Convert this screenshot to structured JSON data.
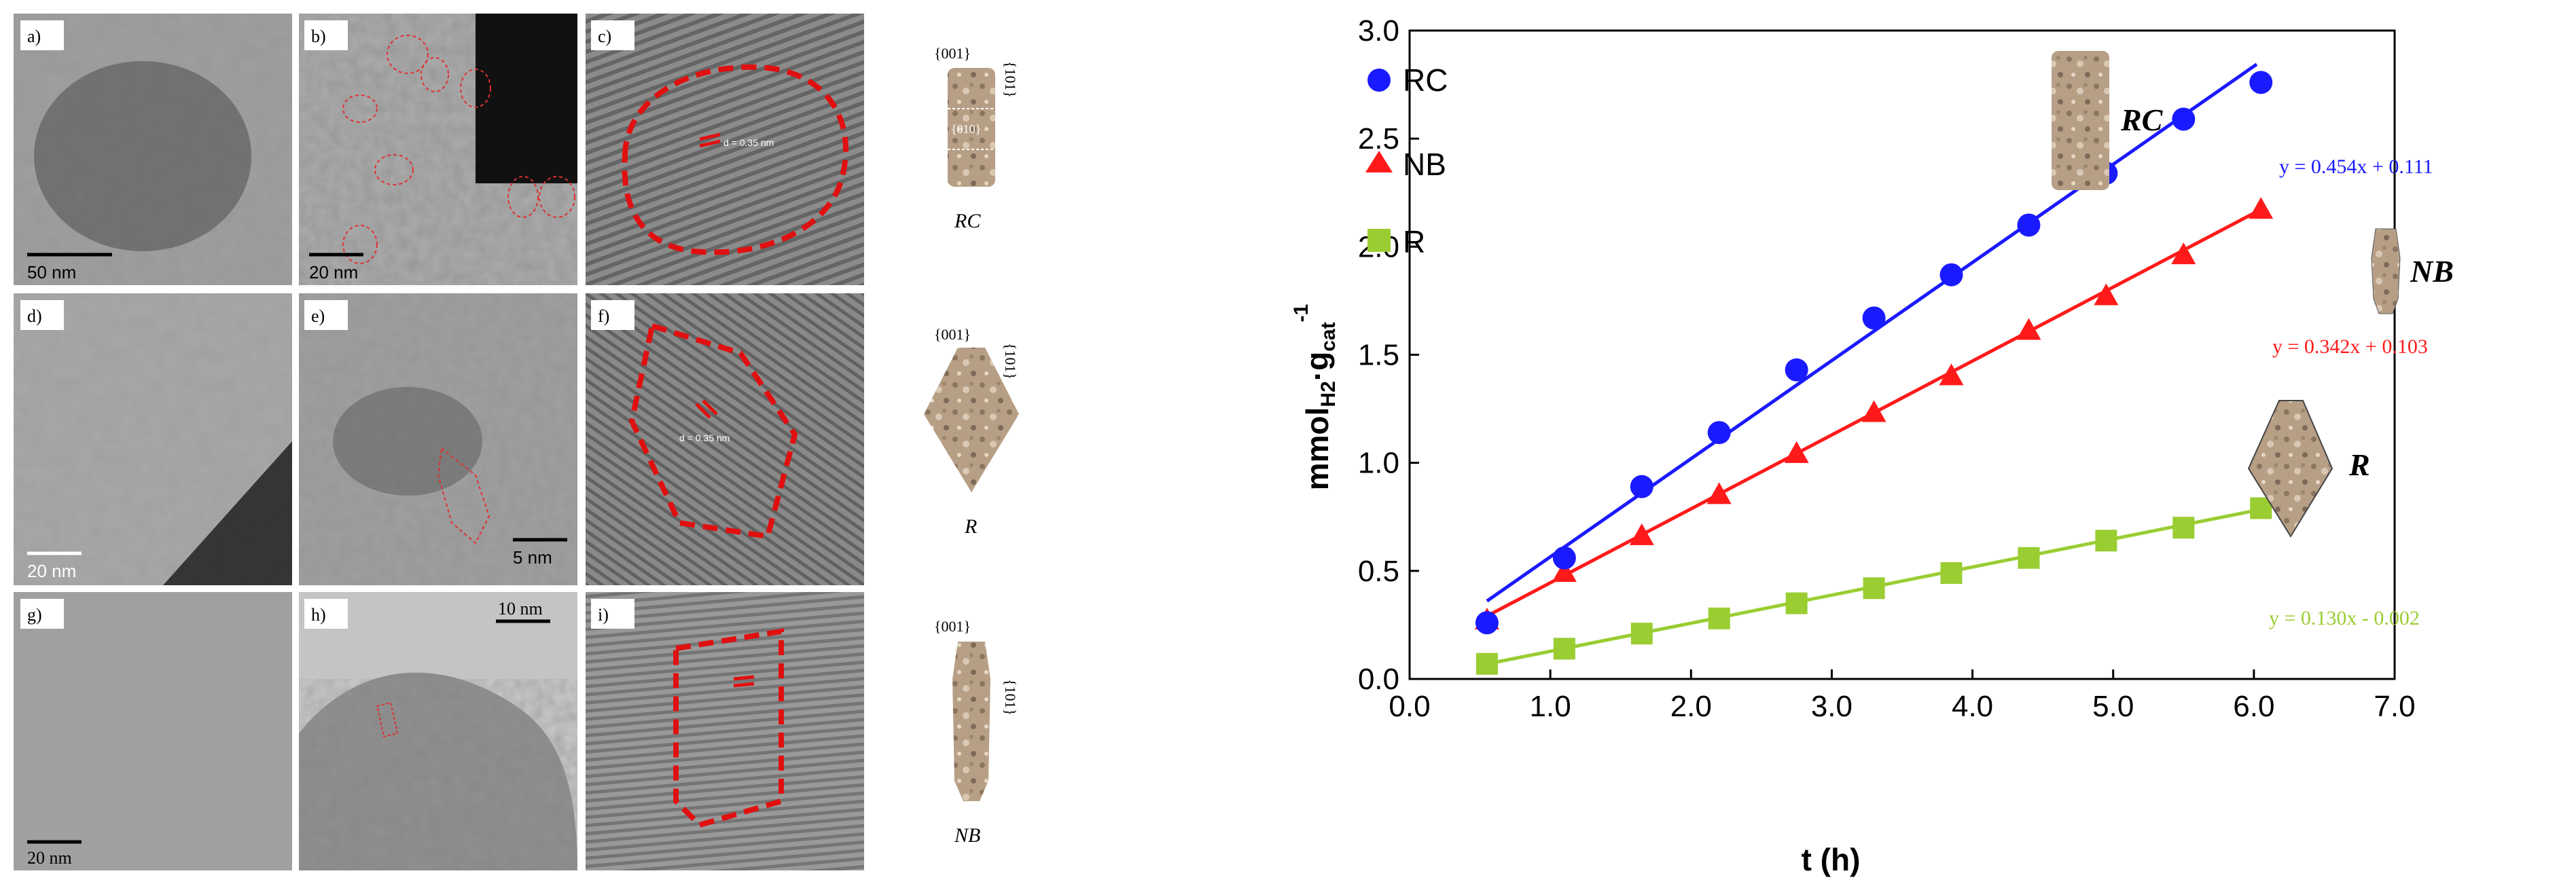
{
  "tem_panels": {
    "rows": [
      [
        {
          "label": "a)",
          "scale": "50 nm"
        },
        {
          "label": "b)",
          "scale": "20 nm"
        },
        {
          "label": "c)",
          "scale": "",
          "fringe": "d = 0.35 nm"
        }
      ],
      [
        {
          "label": "d)",
          "scale": "20 nm"
        },
        {
          "label": "e)",
          "scale": "5 nm"
        },
        {
          "label": "f)",
          "scale": "",
          "fringe": "d = 0.35 nm"
        }
      ],
      [
        {
          "label": "g)",
          "scale": "20 nm"
        },
        {
          "label": "h)",
          "scale": "10 nm"
        },
        {
          "label": "i)",
          "scale": ""
        }
      ]
    ]
  },
  "shape_schemes": [
    {
      "name": "RC",
      "top_facet": "{001}",
      "side_facet": "{101}",
      "mid_facet": "{010}"
    },
    {
      "name": "R",
      "top_facet": "{001}",
      "side_facet": "{101}"
    },
    {
      "name": "NB",
      "top_facet": "{001}",
      "side_facet": "{101}"
    }
  ],
  "chart_data": {
    "type": "scatter",
    "title": "",
    "xlabel": "t (h)",
    "ylabel_main": "mmol",
    "ylabel_sub1": "H2",
    "ylabel_mid": "·g",
    "ylabel_sub2": "cat",
    "ylabel_sup": "-1",
    "xlim": [
      0.0,
      7.0
    ],
    "ylim": [
      0.0,
      3.0
    ],
    "x_ticks": [
      0.0,
      1.0,
      2.0,
      3.0,
      4.0,
      5.0,
      6.0,
      7.0
    ],
    "x_tick_labels": [
      "0.0",
      "1.0",
      "2.0",
      "3.0",
      "4.0",
      "5.0",
      "6.0",
      "7.0"
    ],
    "y_ticks": [
      0.0,
      0.5,
      1.0,
      1.5,
      2.0,
      2.5,
      3.0
    ],
    "y_tick_labels": [
      "0.0",
      "0.5",
      "1.0",
      "1.5",
      "2.0",
      "2.5",
      "3.0"
    ],
    "grid": false,
    "legend_position": "top-left",
    "series": [
      {
        "name": "RC",
        "marker": "circle",
        "color": "#1a1aff",
        "x": [
          0.55,
          1.1,
          1.65,
          2.2,
          2.75,
          3.3,
          3.85,
          4.4,
          4.95,
          5.5,
          6.05
        ],
        "y": [
          0.26,
          0.56,
          0.89,
          1.14,
          1.43,
          1.67,
          1.87,
          2.1,
          2.34,
          2.59,
          2.76
        ],
        "fit_label": "y = 0.454x + 0.111",
        "slope": 0.454,
        "intercept": 0.111,
        "fit_x": [
          0.55,
          6.02
        ]
      },
      {
        "name": "NB",
        "marker": "triangle",
        "color": "#ff1a1a",
        "x": [
          0.55,
          1.1,
          1.65,
          2.2,
          2.75,
          3.3,
          3.85,
          4.4,
          4.95,
          5.5,
          6.05
        ],
        "y": [
          0.27,
          0.49,
          0.66,
          0.85,
          1.04,
          1.23,
          1.4,
          1.61,
          1.77,
          1.96,
          2.17
        ],
        "fit_label": "y = 0.342x + 0.103",
        "slope": 0.342,
        "intercept": 0.103,
        "fit_x": [
          0.55,
          6.05
        ]
      },
      {
        "name": "R",
        "marker": "square",
        "color": "#9acd32",
        "x": [
          0.55,
          1.1,
          1.65,
          2.2,
          2.75,
          3.3,
          3.85,
          4.4,
          4.95,
          5.5,
          6.05
        ],
        "y": [
          0.07,
          0.14,
          0.21,
          0.28,
          0.35,
          0.42,
          0.49,
          0.56,
          0.64,
          0.7,
          0.79
        ],
        "fit_label": "y = 0.130x - 0.002",
        "slope": 0.13,
        "intercept": -0.002,
        "fit_x": [
          0.55,
          6.05
        ]
      }
    ],
    "inset_labels": [
      "RC",
      "NB",
      "R"
    ]
  }
}
